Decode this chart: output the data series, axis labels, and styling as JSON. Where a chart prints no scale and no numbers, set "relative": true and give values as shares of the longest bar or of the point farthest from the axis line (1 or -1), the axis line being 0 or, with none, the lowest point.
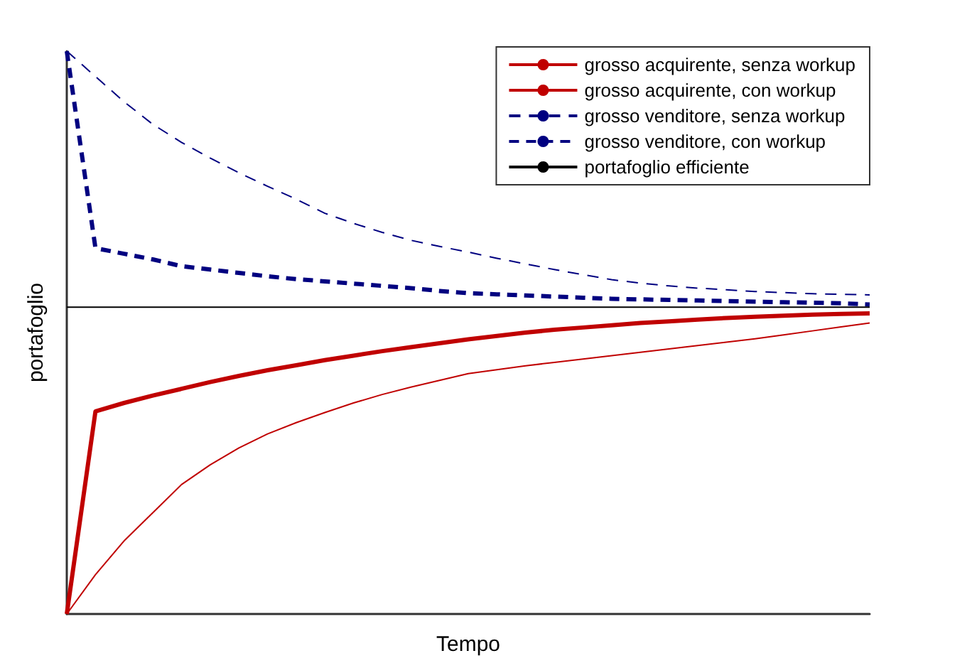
{
  "chart_data": {
    "type": "line",
    "relative": true,
    "xlabel": "Tempo",
    "ylabel": "portafoglio",
    "legend": "top right",
    "grid": false,
    "marker": "none",
    "categories": [
      null,
      null,
      null,
      null,
      null,
      null,
      null,
      null,
      null,
      null,
      null,
      null,
      null,
      null,
      null,
      null,
      null,
      null,
      null,
      null,
      null,
      null,
      null,
      null,
      null,
      null,
      null,
      null,
      null
    ],
    "series": [
      {
        "name": "grosso acquirente, senza workup",
        "color": "#c00000",
        "line_style": "solid",
        "values": [
          0,
          0.07,
          0.13,
          0.18,
          0.23,
          0.265,
          0.295,
          0.32,
          0.34,
          0.358,
          0.375,
          0.39,
          0.403,
          0.415,
          0.427,
          0.434,
          0.441,
          0.447,
          0.453,
          0.459,
          0.465,
          0.471,
          0.477,
          0.483,
          0.489,
          0.496,
          0.503,
          0.51,
          0.517
        ]
      },
      {
        "name": "grosso acquirente, con workup",
        "color": "#c00000",
        "line_style": "solid",
        "values": [
          0,
          0.36,
          0.375,
          0.388,
          0.4,
          0.412,
          0.423,
          0.433,
          0.442,
          0.451,
          0.459,
          0.467,
          0.474,
          0.481,
          0.488,
          0.494,
          0.5,
          0.505,
          0.509,
          0.513,
          0.517,
          0.52,
          0.523,
          0.526,
          0.528,
          0.53,
          0.532,
          0.533,
          0.534
        ]
      },
      {
        "name": "grosso venditore, senza workup",
        "color": "#000080",
        "line_style": "dashed",
        "values": [
          1,
          0.955,
          0.91,
          0.87,
          0.838,
          0.81,
          0.784,
          0.76,
          0.737,
          0.712,
          0.694,
          0.678,
          0.664,
          0.653,
          0.643,
          0.632,
          0.622,
          0.612,
          0.603,
          0.594,
          0.588,
          0.583,
          0.579,
          0.576,
          0.573,
          0.571,
          0.569,
          0.568,
          0.567
        ]
      },
      {
        "name": "grosso venditore, con workup",
        "color": "#000080",
        "line_style": "dashed",
        "values": [
          1,
          0.65,
          0.64,
          0.63,
          0.618,
          0.612,
          0.606,
          0.6,
          0.595,
          0.591,
          0.587,
          0.583,
          0.579,
          0.574,
          0.57,
          0.568,
          0.566,
          0.564,
          0.562,
          0.56,
          0.559,
          0.558,
          0.557,
          0.556,
          0.555,
          0.554,
          0.553,
          0.552,
          0.55
        ]
      },
      {
        "name": "portafoglio efficiente",
        "color": "#000000",
        "line_style": "solid",
        "values": [
          0.545,
          0.545,
          0.545,
          0.545,
          0.545,
          0.545,
          0.545,
          0.545,
          0.545,
          0.545,
          0.545,
          0.545,
          0.545,
          0.545,
          0.545,
          0.545,
          0.545,
          0.545,
          0.545,
          0.545,
          0.545,
          0.545,
          0.545,
          0.545,
          0.545,
          0.545,
          0.545,
          0.545,
          0.545
        ]
      }
    ]
  }
}
